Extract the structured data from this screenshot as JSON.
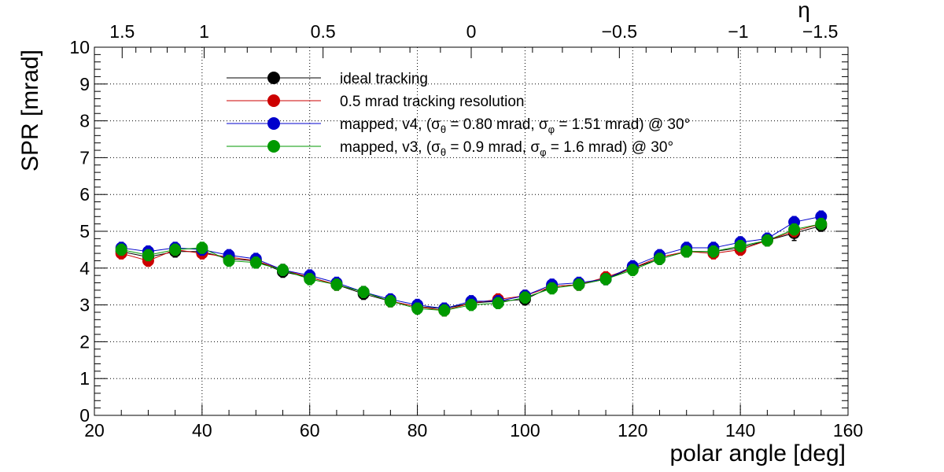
{
  "chart_data": {
    "type": "line",
    "xlabel": "polar angle [deg]",
    "ylabel": "SPR [mrad]",
    "top_axis_label": "η",
    "xlim": [
      20,
      160
    ],
    "ylim": [
      0,
      10
    ],
    "xticks": [
      "20",
      "40",
      "60",
      "80",
      "100",
      "120",
      "140",
      "160"
    ],
    "yticks": [
      "0",
      "1",
      "2",
      "3",
      "4",
      "5",
      "6",
      "7",
      "8",
      "9",
      "10"
    ],
    "top_ticks": [
      {
        "label": "1.5",
        "eta": 1.5
      },
      {
        "label": "1",
        "eta": 1
      },
      {
        "label": "0.5",
        "eta": 0.5
      },
      {
        "label": "0",
        "eta": 0
      },
      {
        "label": "−0.5",
        "eta": -0.5
      },
      {
        "label": "−1",
        "eta": -1
      },
      {
        "label": "−1.5",
        "eta": -1.5
      }
    ],
    "grid": true,
    "legend_position": "top-center",
    "x": [
      25,
      30,
      35,
      40,
      45,
      50,
      55,
      60,
      65,
      70,
      75,
      80,
      85,
      90,
      95,
      100,
      105,
      110,
      115,
      120,
      125,
      130,
      135,
      140,
      145,
      150,
      155
    ],
    "series": [
      {
        "name": "ideal tracking",
        "color": "#000000",
        "values": [
          4.45,
          4.3,
          4.45,
          4.45,
          4.25,
          4.2,
          3.9,
          3.75,
          3.55,
          3.3,
          3.1,
          2.95,
          2.9,
          3.05,
          3.1,
          3.15,
          3.5,
          3.55,
          3.7,
          4.0,
          4.25,
          4.45,
          4.45,
          4.55,
          4.75,
          4.95,
          5.15
        ],
        "errors": [
          0.15,
          0.15,
          0.15,
          0.15,
          0.15,
          0.15,
          0.15,
          0.15,
          0.15,
          0.15,
          0.15,
          0.15,
          0.15,
          0.15,
          0.15,
          0.15,
          0.15,
          0.15,
          0.15,
          0.15,
          0.15,
          0.15,
          0.15,
          0.15,
          0.15,
          0.2,
          0.15
        ]
      },
      {
        "name": "0.5 mrad tracking resolution",
        "color": "#cc0000",
        "values": [
          4.4,
          4.2,
          4.5,
          4.4,
          4.3,
          4.2,
          3.95,
          3.75,
          3.55,
          3.35,
          3.1,
          2.95,
          2.85,
          3.05,
          3.15,
          3.25,
          3.5,
          3.55,
          3.75,
          4.0,
          4.3,
          4.45,
          4.4,
          4.5,
          4.75,
          5.0,
          5.2
        ],
        "errors": [
          0.15,
          0.15,
          0.15,
          0.15,
          0.15,
          0.15,
          0.15,
          0.15,
          0.15,
          0.15,
          0.15,
          0.15,
          0.15,
          0.15,
          0.15,
          0.15,
          0.15,
          0.15,
          0.15,
          0.15,
          0.15,
          0.15,
          0.15,
          0.15,
          0.15,
          0.15,
          0.15
        ]
      },
      {
        "name": "mapped, v4, (σ_θ = 0.80 mrad, σ_φ = 1.51 mrad) @ 30°",
        "color": "#0000cc",
        "values": [
          4.55,
          4.45,
          4.55,
          4.5,
          4.35,
          4.25,
          3.95,
          3.8,
          3.6,
          3.35,
          3.15,
          3.0,
          2.9,
          3.1,
          3.1,
          3.25,
          3.55,
          3.6,
          3.7,
          4.05,
          4.35,
          4.55,
          4.55,
          4.7,
          4.8,
          5.25,
          5.4
        ],
        "errors": [
          0.15,
          0.15,
          0.15,
          0.15,
          0.15,
          0.15,
          0.15,
          0.15,
          0.15,
          0.15,
          0.15,
          0.15,
          0.15,
          0.15,
          0.15,
          0.15,
          0.15,
          0.15,
          0.15,
          0.15,
          0.15,
          0.15,
          0.15,
          0.15,
          0.15,
          0.15,
          0.15
        ]
      },
      {
        "name": "mapped, v3, (σ_θ = 0.9 mrad, σ_φ = 1.6 mrad) @ 30°",
        "color": "#009900",
        "values": [
          4.5,
          4.35,
          4.5,
          4.55,
          4.2,
          4.15,
          3.95,
          3.7,
          3.55,
          3.35,
          3.1,
          2.9,
          2.85,
          3.0,
          3.05,
          3.2,
          3.45,
          3.55,
          3.7,
          3.95,
          4.25,
          4.45,
          4.45,
          4.6,
          4.75,
          5.05,
          5.2
        ],
        "errors": [
          0.15,
          0.15,
          0.15,
          0.15,
          0.15,
          0.15,
          0.15,
          0.15,
          0.15,
          0.15,
          0.15,
          0.15,
          0.15,
          0.15,
          0.15,
          0.15,
          0.15,
          0.15,
          0.15,
          0.15,
          0.15,
          0.15,
          0.15,
          0.15,
          0.15,
          0.15,
          0.15
        ]
      }
    ],
    "legend": [
      {
        "prefix": "ideal tracking",
        "parts": []
      },
      {
        "prefix": "0.5 mrad tracking resolution",
        "parts": []
      },
      {
        "prefix": "mapped, v4, (σ",
        "parts": [
          {
            "sub": "θ"
          },
          {
            "t": " = 0.80 mrad, σ"
          },
          {
            "sub": "φ"
          },
          {
            "t": " = 1.51 mrad) @ 30°"
          }
        ]
      },
      {
        "prefix": "mapped, v3, (σ",
        "parts": [
          {
            "sub": "θ"
          },
          {
            "t": " = 0.9 mrad, σ"
          },
          {
            "sub": "φ"
          },
          {
            "t": " = 1.6 mrad) @ 30°"
          }
        ]
      }
    ]
  }
}
